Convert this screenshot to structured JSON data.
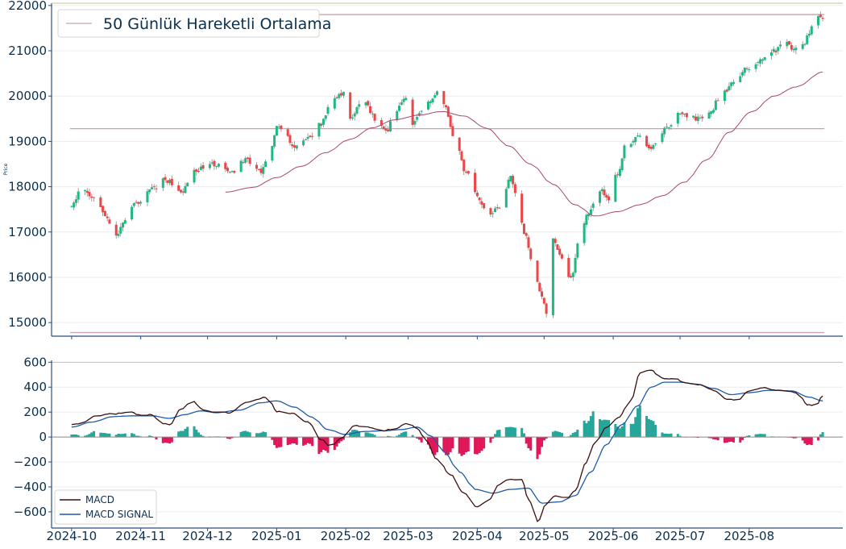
{
  "chart_data": [
    {
      "type": "candlestick",
      "ylabel": "Price",
      "ylim": [
        14700,
        22050
      ],
      "yticks": [
        15000,
        16000,
        17000,
        18000,
        19000,
        20000,
        21000,
        22000
      ],
      "legend": {
        "entries": [
          "50 Günlük Hareketli Ortalama"
        ],
        "placement": "top-left"
      },
      "horizontal_lines": [
        {
          "value": 21800,
          "color": "#c9a0ac"
        },
        {
          "value": 19280,
          "color": "#c9a0ac"
        },
        {
          "value": 14780,
          "color": "#c9a0ac"
        }
      ],
      "colors": {
        "up": "#1db981",
        "down": "#ee4646",
        "ma": "#a8486b",
        "wick": "#8a8a8a"
      },
      "keypoints": [
        [
          "2024-10-01",
          17600
        ],
        [
          "2024-10-05",
          17900
        ],
        [
          "2024-10-12",
          17750
        ],
        [
          "2024-10-16",
          17350
        ],
        [
          "2024-10-21",
          16900
        ],
        [
          "2024-10-24",
          17200
        ],
        [
          "2024-10-29",
          17600
        ],
        [
          "2024-11-06",
          17950
        ],
        [
          "2024-11-12",
          18150
        ],
        [
          "2024-11-19",
          17900
        ],
        [
          "2024-11-27",
          18400
        ],
        [
          "2024-12-04",
          18500
        ],
        [
          "2024-12-12",
          18300
        ],
        [
          "2024-12-18",
          18600
        ],
        [
          "2024-12-25",
          18350
        ],
        [
          "2024-12-29",
          18800
        ],
        [
          "2025-01-01",
          19300
        ],
        [
          "2025-01-05",
          19200
        ],
        [
          "2025-01-08",
          18850
        ],
        [
          "2025-01-16",
          19100
        ],
        [
          "2025-01-21",
          19400
        ],
        [
          "2025-01-25",
          19850
        ],
        [
          "2025-01-31",
          20050
        ],
        [
          "2025-02-03",
          19500
        ],
        [
          "2025-02-09",
          19900
        ],
        [
          "2025-02-15",
          19450
        ],
        [
          "2025-02-19",
          19200
        ],
        [
          "2025-02-23",
          19600
        ],
        [
          "2025-02-28",
          20000
        ],
        [
          "2025-03-03",
          19400
        ],
        [
          "2025-03-09",
          19800
        ],
        [
          "2025-03-14",
          20050
        ],
        [
          "2025-03-17",
          19800
        ],
        [
          "2025-03-22",
          19000
        ],
        [
          "2025-03-27",
          18300
        ],
        [
          "2025-04-02",
          17700
        ],
        [
          "2025-04-06",
          17350
        ],
        [
          "2025-04-12",
          17600
        ],
        [
          "2025-04-16",
          18200
        ],
        [
          "2025-04-19",
          17800
        ],
        [
          "2025-04-22",
          17000
        ],
        [
          "2025-04-26",
          16300
        ],
        [
          "2025-04-30",
          15600
        ],
        [
          "2025-05-02",
          15200
        ],
        [
          "2025-05-05",
          16900
        ],
        [
          "2025-05-08",
          16500
        ],
        [
          "2025-05-13",
          16000
        ],
        [
          "2025-05-17",
          16900
        ],
        [
          "2025-05-21",
          17400
        ],
        [
          "2025-05-26",
          17950
        ],
        [
          "2025-05-30",
          17700
        ],
        [
          "2025-06-03",
          18300
        ],
        [
          "2025-06-07",
          18950
        ],
        [
          "2025-06-13",
          19100
        ],
        [
          "2025-06-17",
          18800
        ],
        [
          "2025-06-25",
          19300
        ],
        [
          "2025-07-01",
          19600
        ],
        [
          "2025-07-09",
          19500
        ],
        [
          "2025-07-15",
          19700
        ],
        [
          "2025-07-19",
          20000
        ],
        [
          "2025-07-25",
          20300
        ],
        [
          "2025-07-31",
          20600
        ],
        [
          "2025-08-06",
          20800
        ],
        [
          "2025-08-13",
          21000
        ],
        [
          "2025-08-17",
          21250
        ],
        [
          "2025-08-21",
          21000
        ],
        [
          "2025-08-25",
          21100
        ],
        [
          "2025-08-28",
          21400
        ],
        [
          "2025-08-31",
          21750
        ],
        [
          "2025-09-03",
          21700
        ]
      ],
      "ma_start": "2024-12-09",
      "ma_keypoints": [
        [
          "2024-12-09",
          17880
        ],
        [
          "2024-12-21",
          17980
        ],
        [
          "2025-01-01",
          18200
        ],
        [
          "2025-01-12",
          18450
        ],
        [
          "2025-01-23",
          18750
        ],
        [
          "2025-02-03",
          19050
        ],
        [
          "2025-02-13",
          19300
        ],
        [
          "2025-02-23",
          19480
        ],
        [
          "2025-03-06",
          19580
        ],
        [
          "2025-03-16",
          19660
        ],
        [
          "2025-03-26",
          19560
        ],
        [
          "2025-04-05",
          19300
        ],
        [
          "2025-04-15",
          18900
        ],
        [
          "2025-04-25",
          18500
        ],
        [
          "2025-05-05",
          18050
        ],
        [
          "2025-05-15",
          17600
        ],
        [
          "2025-05-24",
          17350
        ],
        [
          "2025-06-03",
          17450
        ],
        [
          "2025-06-13",
          17600
        ],
        [
          "2025-06-23",
          17800
        ],
        [
          "2025-07-03",
          18100
        ],
        [
          "2025-07-13",
          18600
        ],
        [
          "2025-07-23",
          19200
        ],
        [
          "2025-08-02",
          19650
        ],
        [
          "2025-08-12",
          20000
        ],
        [
          "2025-08-22",
          20200
        ],
        [
          "2025-09-03",
          20530
        ]
      ]
    },
    {
      "type": "macd",
      "ylim": [
        -730,
        615
      ],
      "yticks": [
        -600,
        -400,
        -200,
        0,
        200,
        400,
        600
      ],
      "top_line": 600,
      "legend": {
        "entries": [
          "MACD",
          "MACD SIGNAL"
        ],
        "placement": "bottom-left"
      },
      "colors": {
        "macd": "#3a0f0f",
        "signal": "#1e5aa8",
        "hist_up": "#26a69a",
        "hist_down": "#e0185a"
      },
      "macd_keypoints": [
        [
          "2024-10-01",
          100
        ],
        [
          "2024-10-05",
          110
        ],
        [
          "2024-10-12",
          170
        ],
        [
          "2024-10-19",
          185
        ],
        [
          "2024-10-27",
          200
        ],
        [
          "2024-11-01",
          175
        ],
        [
          "2024-11-06",
          180
        ],
        [
          "2024-11-10",
          110
        ],
        [
          "2024-11-14",
          100
        ],
        [
          "2024-11-19",
          225
        ],
        [
          "2024-11-24",
          290
        ],
        [
          "2024-11-29",
          220
        ],
        [
          "2024-12-04",
          200
        ],
        [
          "2024-12-11",
          195
        ],
        [
          "2024-12-18",
          275
        ],
        [
          "2024-12-28",
          320
        ],
        [
          "2025-01-01",
          205
        ],
        [
          "2025-01-08",
          190
        ],
        [
          "2025-01-15",
          120
        ],
        [
          "2025-01-21",
          -20
        ],
        [
          "2025-01-25",
          -70
        ],
        [
          "2025-01-31",
          0
        ],
        [
          "2025-02-05",
          90
        ],
        [
          "2025-02-11",
          80
        ],
        [
          "2025-02-18",
          50
        ],
        [
          "2025-02-23",
          70
        ],
        [
          "2025-03-01",
          110
        ],
        [
          "2025-03-05",
          70
        ],
        [
          "2025-03-09",
          -30
        ],
        [
          "2025-03-14",
          -180
        ],
        [
          "2025-03-20",
          -300
        ],
        [
          "2025-03-26",
          -450
        ],
        [
          "2025-04-01",
          -560
        ],
        [
          "2025-04-06",
          -510
        ],
        [
          "2025-04-11",
          -380
        ],
        [
          "2025-04-15",
          -340
        ],
        [
          "2025-04-21",
          -340
        ],
        [
          "2025-04-24",
          -500
        ],
        [
          "2025-04-28",
          -680
        ],
        [
          "2025-05-02",
          -540
        ],
        [
          "2025-05-06",
          -470
        ],
        [
          "2025-05-11",
          -490
        ],
        [
          "2025-05-15",
          -430
        ],
        [
          "2025-05-19",
          -220
        ],
        [
          "2025-05-24",
          -50
        ],
        [
          "2025-05-29",
          80
        ],
        [
          "2025-06-03",
          150
        ],
        [
          "2025-06-09",
          300
        ],
        [
          "2025-06-13",
          510
        ],
        [
          "2025-06-18",
          540
        ],
        [
          "2025-06-22",
          470
        ],
        [
          "2025-06-29",
          465
        ],
        [
          "2025-07-04",
          430
        ],
        [
          "2025-07-10",
          420
        ],
        [
          "2025-07-16",
          375
        ],
        [
          "2025-07-22",
          300
        ],
        [
          "2025-07-27",
          300
        ],
        [
          "2025-08-01",
          370
        ],
        [
          "2025-08-07",
          395
        ],
        [
          "2025-08-14",
          375
        ],
        [
          "2025-08-19",
          370
        ],
        [
          "2025-08-23",
          350
        ],
        [
          "2025-08-27",
          260
        ],
        [
          "2025-08-31",
          250
        ],
        [
          "2025-09-03",
          330
        ]
      ],
      "signal_keypoints": [
        [
          "2024-10-01",
          80
        ],
        [
          "2024-10-10",
          120
        ],
        [
          "2024-10-20",
          165
        ],
        [
          "2024-10-28",
          170
        ],
        [
          "2024-11-06",
          170
        ],
        [
          "2024-11-14",
          150
        ],
        [
          "2024-11-21",
          180
        ],
        [
          "2024-11-28",
          210
        ],
        [
          "2024-12-05",
          195
        ],
        [
          "2024-12-15",
          215
        ],
        [
          "2024-12-25",
          275
        ],
        [
          "2025-01-01",
          290
        ],
        [
          "2025-01-09",
          240
        ],
        [
          "2025-01-17",
          160
        ],
        [
          "2025-01-24",
          60
        ],
        [
          "2025-02-01",
          20
        ],
        [
          "2025-02-09",
          45
        ],
        [
          "2025-02-18",
          50
        ],
        [
          "2025-02-26",
          60
        ],
        [
          "2025-03-05",
          80
        ],
        [
          "2025-03-11",
          10
        ],
        [
          "2025-03-17",
          -120
        ],
        [
          "2025-03-24",
          -280
        ],
        [
          "2025-03-31",
          -420
        ],
        [
          "2025-04-08",
          -450
        ],
        [
          "2025-04-16",
          -420
        ],
        [
          "2025-04-24",
          -410
        ],
        [
          "2025-04-30",
          -530
        ],
        [
          "2025-05-08",
          -520
        ],
        [
          "2025-05-15",
          -470
        ],
        [
          "2025-05-22",
          -280
        ],
        [
          "2025-05-29",
          -60
        ],
        [
          "2025-06-05",
          100
        ],
        [
          "2025-06-12",
          250
        ],
        [
          "2025-06-18",
          400
        ],
        [
          "2025-06-24",
          440
        ],
        [
          "2025-07-01",
          440
        ],
        [
          "2025-07-08",
          425
        ],
        [
          "2025-07-16",
          390
        ],
        [
          "2025-07-24",
          340
        ],
        [
          "2025-08-01",
          355
        ],
        [
          "2025-08-10",
          375
        ],
        [
          "2025-08-20",
          370
        ],
        [
          "2025-08-28",
          320
        ],
        [
          "2025-09-03",
          290
        ]
      ]
    }
  ],
  "x_axis": {
    "type": "date",
    "range": [
      "2024-09-22",
      "2025-09-12"
    ],
    "ticks": [
      {
        "date": "2024-10-01",
        "label": "2024-10"
      },
      {
        "date": "2024-11-01",
        "label": "2024-11"
      },
      {
        "date": "2024-12-01",
        "label": "2024-12"
      },
      {
        "date": "2025-01-01",
        "label": "2025-01"
      },
      {
        "date": "2025-02-01",
        "label": "2025-02"
      },
      {
        "date": "2025-03-01",
        "label": "2025-03"
      },
      {
        "date": "2025-04-01",
        "label": "2025-04"
      },
      {
        "date": "2025-05-01",
        "label": "2025-05"
      },
      {
        "date": "2025-06-01",
        "label": "2025-06"
      },
      {
        "date": "2025-07-01",
        "label": "2025-07"
      },
      {
        "date": "2025-08-01",
        "label": "2025-08"
      }
    ]
  }
}
